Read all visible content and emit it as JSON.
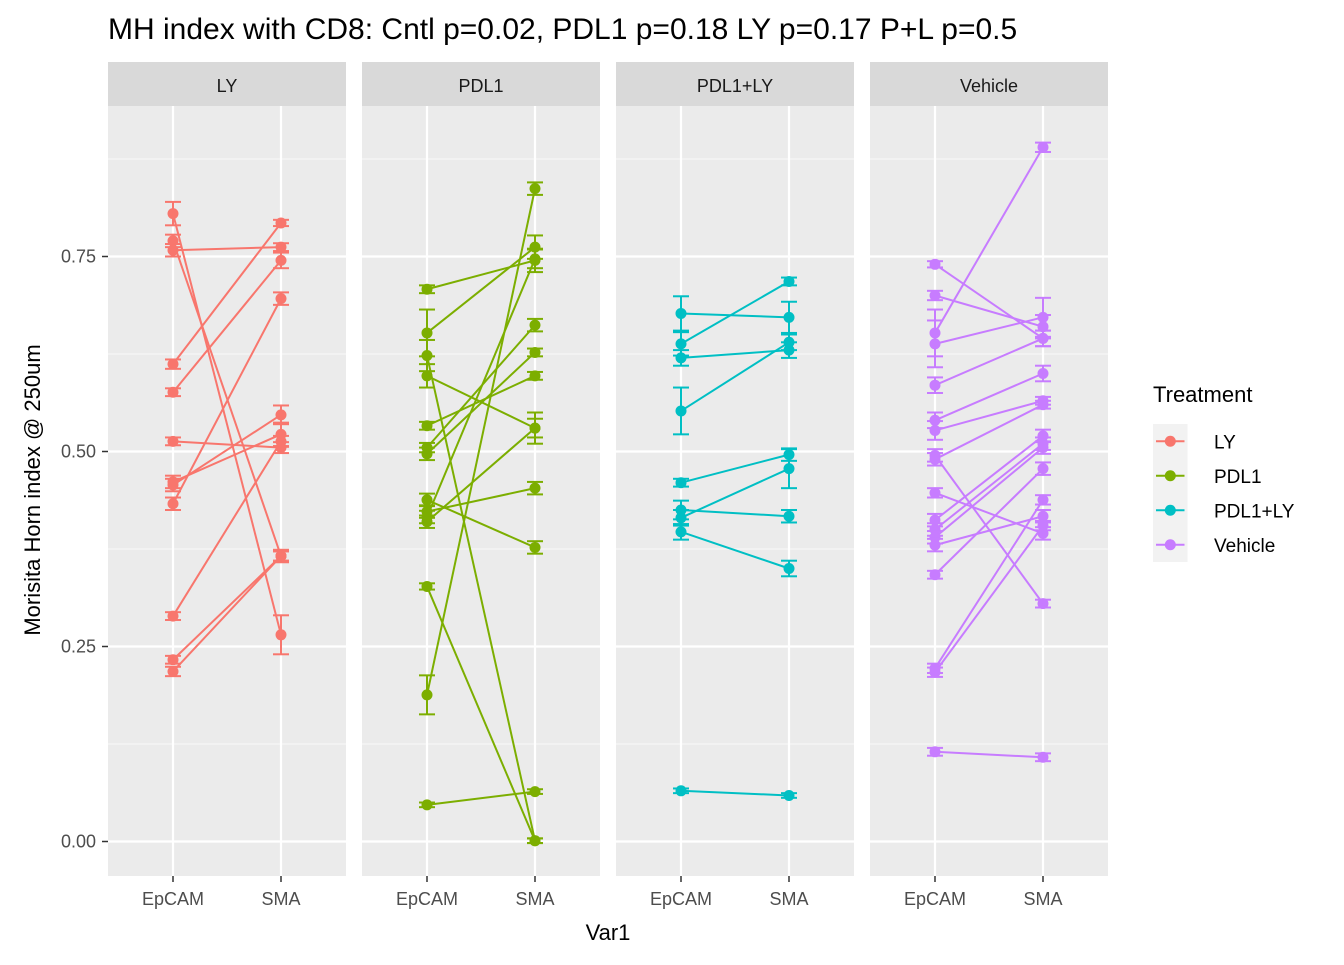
{
  "chart_data": {
    "type": "line",
    "title": "MH index with CD8: Cntl p=0.02, PDL1 p=0.18 LY p=0.17 P+L p=0.5",
    "xlabel": "Var1",
    "ylabel": "Morisita Horn index @ 250um",
    "ylim": [
      -0.05,
      0.94
    ],
    "yticks": [
      "0.00",
      "0.25",
      "0.50",
      "0.75"
    ],
    "yticks_values": [
      0,
      0.25,
      0.5,
      0.75
    ],
    "categories": [
      "EpCAM",
      "SMA"
    ],
    "grid": true,
    "legend": {
      "title": "Treatment",
      "position": "right",
      "entries": [
        "LY",
        "PDL1",
        "PDL1+LY",
        "Vehicle"
      ]
    },
    "colors": {
      "LY": "#F8766D",
      "PDL1": "#7CAE00",
      "PDL1+LY": "#00BFC4",
      "Vehicle": "#C77CFF"
    },
    "panels": [
      {
        "name": "LY",
        "pairs": [
          {
            "epcam": 0.805,
            "epcam_err": 0.015,
            "sma": 0.265,
            "sma_err": 0.025
          },
          {
            "epcam": 0.77,
            "epcam_err": 0.008,
            "sma": 0.366,
            "sma_err": 0.008
          },
          {
            "epcam": 0.758,
            "epcam_err": 0.008,
            "sma": 0.762,
            "sma_err": 0.005
          },
          {
            "epcam": 0.612,
            "epcam_err": 0.006,
            "sma": 0.793,
            "sma_err": 0.004
          },
          {
            "epcam": 0.576,
            "epcam_err": 0.005,
            "sma": 0.745,
            "sma_err": 0.01
          },
          {
            "epcam": 0.513,
            "epcam_err": 0.005,
            "sma": 0.505,
            "sma_err": 0.007
          },
          {
            "epcam": 0.461,
            "epcam_err": 0.008,
            "sma": 0.522,
            "sma_err": 0.015
          },
          {
            "epcam": 0.457,
            "epcam_err": 0.008,
            "sma": 0.547,
            "sma_err": 0.012
          },
          {
            "epcam": 0.433,
            "epcam_err": 0.008,
            "sma": 0.696,
            "sma_err": 0.008
          },
          {
            "epcam": 0.289,
            "epcam_err": 0.005,
            "sma": 0.513,
            "sma_err": 0.007
          },
          {
            "epcam": 0.233,
            "epcam_err": 0.005,
            "sma": 0.366,
            "sma_err": 0.006
          },
          {
            "epcam": 0.218,
            "epcam_err": 0.006,
            "sma": 0.366,
            "sma_err": 0.006
          }
        ]
      },
      {
        "name": "PDL1",
        "pairs": [
          {
            "epcam": 0.708,
            "epcam_err": 0.005,
            "sma": 0.745,
            "sma_err": 0.015
          },
          {
            "epcam": 0.652,
            "epcam_err": 0.03,
            "sma": 0.762,
            "sma_err": 0.015
          },
          {
            "epcam": 0.623,
            "epcam_err": 0.02,
            "sma": 0.001,
            "sma_err": 0.003
          },
          {
            "epcam": 0.597,
            "epcam_err": 0.015,
            "sma": 0.53,
            "sma_err": 0.02
          },
          {
            "epcam": 0.533,
            "epcam_err": 0.005,
            "sma": 0.597,
            "sma_err": 0.005
          },
          {
            "epcam": 0.505,
            "epcam_err": 0.006,
            "sma": 0.662,
            "sma_err": 0.008
          },
          {
            "epcam": 0.497,
            "epcam_err": 0.008,
            "sma": 0.627,
            "sma_err": 0.005
          },
          {
            "epcam": 0.438,
            "epcam_err": 0.008,
            "sma": 0.377,
            "sma_err": 0.008
          },
          {
            "epcam": 0.423,
            "epcam_err": 0.008,
            "sma": 0.453,
            "sma_err": 0.008
          },
          {
            "epcam": 0.416,
            "epcam_err": 0.008,
            "sma": 0.747,
            "sma_err": 0.012
          },
          {
            "epcam": 0.41,
            "epcam_err": 0.008,
            "sma": 0.53,
            "sma_err": 0.012
          },
          {
            "epcam": 0.327,
            "epcam_err": 0.004,
            "sma": 0.001,
            "sma_err": 0.003
          },
          {
            "epcam": 0.188,
            "epcam_err": 0.025,
            "sma": 0.837,
            "sma_err": 0.008
          },
          {
            "epcam": 0.047,
            "epcam_err": 0.003,
            "sma": 0.064,
            "sma_err": 0.003
          }
        ]
      },
      {
        "name": "PDL1+LY",
        "pairs": [
          {
            "epcam": 0.677,
            "epcam_err": 0.022,
            "sma": 0.672,
            "sma_err": 0.02
          },
          {
            "epcam": 0.638,
            "epcam_err": 0.015,
            "sma": 0.718,
            "sma_err": 0.005
          },
          {
            "epcam": 0.62,
            "epcam_err": 0.01,
            "sma": 0.63,
            "sma_err": 0.01
          },
          {
            "epcam": 0.552,
            "epcam_err": 0.03,
            "sma": 0.64,
            "sma_err": 0.01
          },
          {
            "epcam": 0.46,
            "epcam_err": 0.005,
            "sma": 0.496,
            "sma_err": 0.008
          },
          {
            "epcam": 0.425,
            "epcam_err": 0.012,
            "sma": 0.417,
            "sma_err": 0.008
          },
          {
            "epcam": 0.415,
            "epcam_err": 0.01,
            "sma": 0.478,
            "sma_err": 0.025
          },
          {
            "epcam": 0.397,
            "epcam_err": 0.01,
            "sma": 0.35,
            "sma_err": 0.01
          },
          {
            "epcam": 0.065,
            "epcam_err": 0.003,
            "sma": 0.059,
            "sma_err": 0.003
          }
        ]
      },
      {
        "name": "Vehicle",
        "pairs": [
          {
            "epcam": 0.74,
            "epcam_err": 0.004,
            "sma": 0.645,
            "sma_err": 0.01
          },
          {
            "epcam": 0.7,
            "epcam_err": 0.006,
            "sma": 0.66,
            "sma_err": 0.015
          },
          {
            "epcam": 0.652,
            "epcam_err": 0.03,
            "sma": 0.89,
            "sma_err": 0.006
          },
          {
            "epcam": 0.638,
            "epcam_err": 0.03,
            "sma": 0.672,
            "sma_err": 0.025
          },
          {
            "epcam": 0.585,
            "epcam_err": 0.01,
            "sma": 0.645,
            "sma_err": 0.01
          },
          {
            "epcam": 0.54,
            "epcam_err": 0.01,
            "sma": 0.6,
            "sma_err": 0.01
          },
          {
            "epcam": 0.527,
            "epcam_err": 0.012,
            "sma": 0.565,
            "sma_err": 0.005
          },
          {
            "epcam": 0.495,
            "epcam_err": 0.008,
            "sma": 0.305,
            "sma_err": 0.005
          },
          {
            "epcam": 0.49,
            "epcam_err": 0.008,
            "sma": 0.56,
            "sma_err": 0.005
          },
          {
            "epcam": 0.447,
            "epcam_err": 0.006,
            "sma": 0.395,
            "sma_err": 0.008
          },
          {
            "epcam": 0.412,
            "epcam_err": 0.008,
            "sma": 0.52,
            "sma_err": 0.008
          },
          {
            "epcam": 0.4,
            "epcam_err": 0.008,
            "sma": 0.51,
            "sma_err": 0.008
          },
          {
            "epcam": 0.39,
            "epcam_err": 0.008,
            "sma": 0.505,
            "sma_err": 0.008
          },
          {
            "epcam": 0.38,
            "epcam_err": 0.008,
            "sma": 0.417,
            "sma_err": 0.008
          },
          {
            "epcam": 0.342,
            "epcam_err": 0.005,
            "sma": 0.478,
            "sma_err": 0.008
          },
          {
            "epcam": 0.222,
            "epcam_err": 0.006,
            "sma": 0.438,
            "sma_err": 0.006
          },
          {
            "epcam": 0.217,
            "epcam_err": 0.006,
            "sma": 0.405,
            "sma_err": 0.006
          },
          {
            "epcam": 0.115,
            "epcam_err": 0.005,
            "sma": 0.108,
            "sma_err": 0.005
          }
        ]
      }
    ]
  }
}
